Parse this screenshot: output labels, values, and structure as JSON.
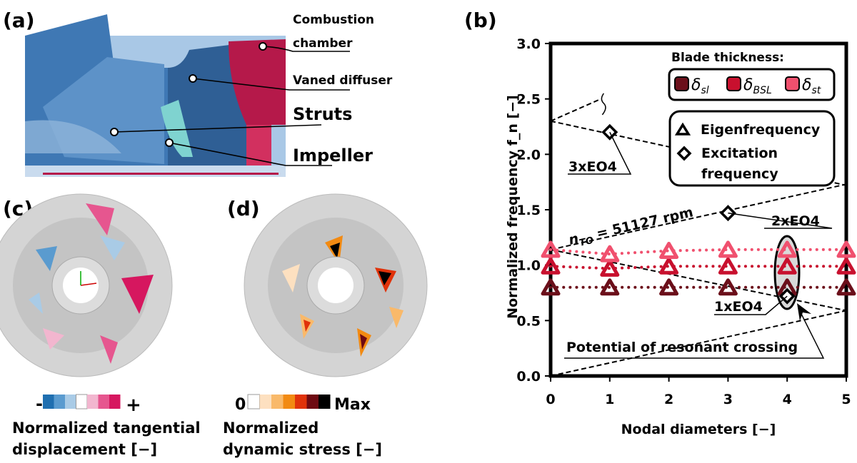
{
  "panel_a": {
    "label": "(a)",
    "callouts": [
      "Combustion chamber",
      "Vaned diffuser",
      "Struts",
      "Impeller"
    ],
    "callout_lines": [
      "Combustion",
      "chamber"
    ]
  },
  "panel_c": {
    "label": "(c)",
    "scale_min": "-",
    "scale_max": "+",
    "scale_colors": [
      "#1f6fb0",
      "#5a9bcf",
      "#a9cbe6",
      "#ffffff",
      "#f2b6cf",
      "#e6568f",
      "#d6175f"
    ],
    "caption_line1": "Normalized tangential",
    "caption_line2": "displacement [−]"
  },
  "panel_d": {
    "label": "(d)",
    "scale_min": "0",
    "scale_max": "Max",
    "scale_colors": [
      "#ffffff",
      "#fde0c0",
      "#f9b96a",
      "#f28a12",
      "#e0320a",
      "#6e0a12",
      "#000000"
    ],
    "caption_line1": "Normalized",
    "caption_line2": "dynamic stress [−]"
  },
  "chart_data": {
    "label": "(b)",
    "type": "scatter",
    "xlabel": "Nodal diameters [−]",
    "ylabel": "Normalized frequency f_n [−]",
    "xlim": [
      0,
      5
    ],
    "ylim": [
      0,
      3
    ],
    "xticks": [
      "0",
      "1",
      "2",
      "3",
      "4",
      "5"
    ],
    "yticks": [
      "0.0",
      "0.5",
      "1.0",
      "1.5",
      "2.0",
      "2.5",
      "3.0"
    ],
    "legend_title": "Blade thickness:",
    "legend_placement": "top-right",
    "marker_legend": [
      "Eigenfrequency",
      "Excitation frequency"
    ],
    "series": [
      {
        "name": "δ_sl",
        "name_base": "δ",
        "name_sub": "sl",
        "color": "#6b0f1a",
        "x": [
          0,
          1,
          2,
          3,
          4,
          5
        ],
        "y": [
          0.8,
          0.8,
          0.8,
          0.8,
          0.8,
          0.8
        ]
      },
      {
        "name": "δ_BSL",
        "name_base": "δ",
        "name_sub": "BSL",
        "color": "#c8102e",
        "x": [
          0,
          1,
          2,
          3,
          4,
          5
        ],
        "y": [
          0.99,
          0.97,
          0.99,
          0.99,
          0.99,
          0.99
        ]
      },
      {
        "name": "δ_st",
        "name_base": "δ",
        "name_sub": "st",
        "color": "#f0506e",
        "x": [
          0,
          1,
          2,
          3,
          4,
          5
        ],
        "y": [
          1.14,
          1.1,
          1.13,
          1.14,
          1.14,
          1.14
        ]
      }
    ],
    "excitation_points": [
      {
        "label": "3xEO4",
        "x": 1,
        "y": 2.2
      },
      {
        "label": "2xEO4",
        "x": 3,
        "y": 1.47
      },
      {
        "label": "1xEO4",
        "x": 4,
        "y": 0.72
      }
    ],
    "speed_lines": [
      {
        "x": [
          0,
          0.85
        ],
        "y": [
          2.3,
          2.5
        ]
      },
      {
        "x": [
          0,
          5
        ],
        "y": [
          2.3,
          1.72
        ]
      },
      {
        "x": [
          0,
          5
        ],
        "y": [
          1.14,
          1.73
        ]
      },
      {
        "x": [
          0,
          5
        ],
        "y": [
          1.14,
          0.59
        ]
      },
      {
        "x": [
          0,
          5
        ],
        "y": [
          0.0,
          0.59
        ]
      }
    ],
    "speed_annotation": "n_TO = 51127 rpm",
    "speed_annotation_base": "n",
    "speed_annotation_sub": "TO",
    "speed_annotation_rest": " = 51127 rpm",
    "resonance_annotation": "Potential of resonant crossing",
    "grid": false
  }
}
